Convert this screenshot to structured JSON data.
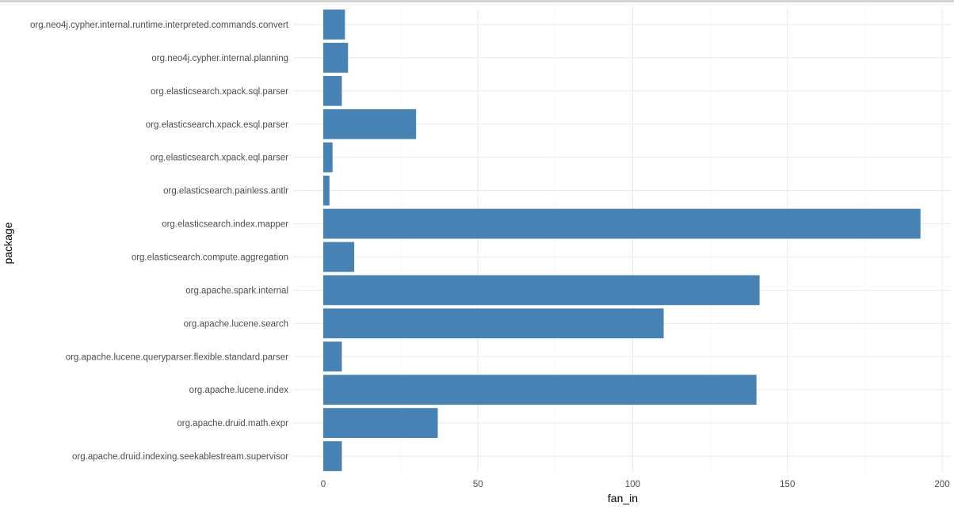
{
  "chart_data": {
    "type": "bar",
    "orientation": "horizontal",
    "xlabel": "fan_in",
    "ylabel": "package",
    "xlim": [
      0,
      203
    ],
    "xticks": [
      0,
      50,
      100,
      150,
      200
    ],
    "grid": true,
    "bar_color": "#4682b4",
    "categories": [
      "org.apache.druid.indexing.seekablestream.supervisor",
      "org.apache.druid.math.expr",
      "org.apache.lucene.index",
      "org.apache.lucene.queryparser.flexible.standard.parser",
      "org.apache.lucene.search",
      "org.apache.spark.internal",
      "org.elasticsearch.compute.aggregation",
      "org.elasticsearch.index.mapper",
      "org.elasticsearch.painless.antlr",
      "org.elasticsearch.xpack.eql.parser",
      "org.elasticsearch.xpack.esql.parser",
      "org.elasticsearch.xpack.sql.parser",
      "org.neo4j.cypher.internal.planning",
      "org.neo4j.cypher.internal.runtime.interpreted.commands.convert"
    ],
    "values": [
      6,
      37,
      140,
      6,
      110,
      141,
      10,
      193,
      2,
      3,
      30,
      6,
      8,
      7
    ]
  }
}
